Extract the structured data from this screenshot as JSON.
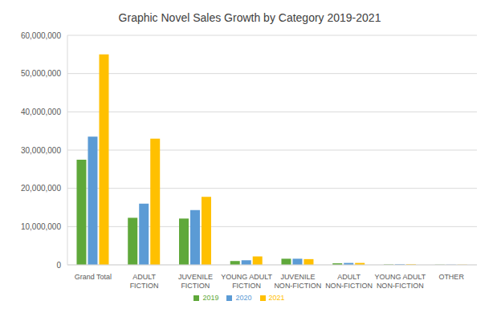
{
  "chart_data": {
    "type": "bar",
    "title": "Graphic Novel Sales Growth by Category 2019-2021",
    "categories": [
      "Grand Total",
      "ADULT FICTION",
      "JUVENILE FICTION",
      "YOUNG ADULT FICTION",
      "JUVENILE NON-FICTION",
      "ADULT NON-FICTION",
      "YOUNG ADULT NON-FICTION",
      "OTHER"
    ],
    "series": [
      {
        "name": "2019",
        "color": "#5fa83a",
        "values": [
          27500000,
          12300000,
          12100000,
          1000000,
          1600000,
          400000,
          100000,
          50000
        ]
      },
      {
        "name": "2020",
        "color": "#5b9bd5",
        "values": [
          33500000,
          16000000,
          14300000,
          1200000,
          1600000,
          500000,
          150000,
          50000
        ]
      },
      {
        "name": "2021",
        "color": "#ffc000",
        "values": [
          55000000,
          33000000,
          17800000,
          2200000,
          1500000,
          500000,
          150000,
          50000
        ]
      }
    ],
    "ylim": [
      0,
      60000000
    ],
    "yticks": [
      0,
      {
        "value": 10000000,
        "label": "10,000,000"
      },
      {
        "value": 20000000,
        "label": "20,000,000"
      },
      {
        "value": 30000000,
        "label": "30,000,000"
      },
      {
        "value": 40000000,
        "label": "40,000,000"
      },
      {
        "value": 50000000,
        "label": "50,000,000"
      },
      {
        "value": 60000000,
        "label": "60,000,000"
      }
    ],
    "grid": true,
    "legend": "bottom"
  }
}
